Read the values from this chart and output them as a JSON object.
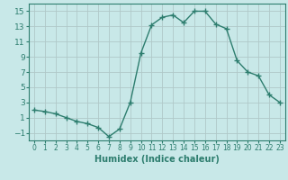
{
  "x": [
    0,
    1,
    2,
    3,
    4,
    5,
    6,
    7,
    8,
    9,
    10,
    11,
    12,
    13,
    14,
    15,
    16,
    17,
    18,
    19,
    20,
    21,
    22,
    23
  ],
  "y": [
    2,
    1.8,
    1.5,
    1,
    0.5,
    0.2,
    -0.3,
    -1.5,
    -0.5,
    3,
    9.5,
    13.2,
    14.2,
    14.5,
    13.5,
    15,
    15,
    13.3,
    12.7,
    8.5,
    7,
    6.5,
    4,
    3
  ],
  "line_color": "#2d7d6e",
  "marker": "+",
  "marker_size": 4,
  "bg_color": "#c8e8e8",
  "grid_color": "#b0c8c8",
  "xlabel": "Humidex (Indice chaleur)",
  "xlim": [
    -0.5,
    23.5
  ],
  "ylim": [
    -2,
    16
  ],
  "yticks": [
    -1,
    1,
    3,
    5,
    7,
    9,
    11,
    13,
    15
  ],
  "xticks": [
    0,
    1,
    2,
    3,
    4,
    5,
    6,
    7,
    8,
    9,
    10,
    11,
    12,
    13,
    14,
    15,
    16,
    17,
    18,
    19,
    20,
    21,
    22,
    23
  ],
  "xlabel_fontsize": 7,
  "ytick_fontsize": 6.5,
  "xtick_fontsize": 5.5,
  "line_width": 1.0
}
